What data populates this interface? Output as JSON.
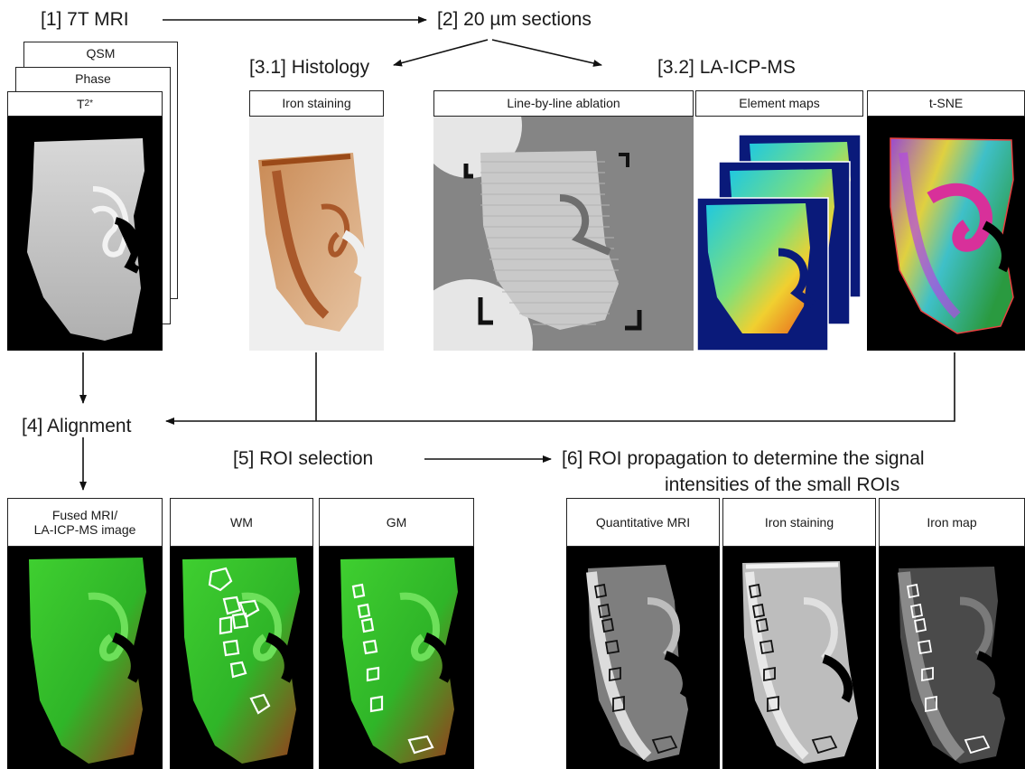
{
  "steps": {
    "s1": "[1] 7T MRI",
    "s2": "[2] 20 µm sections",
    "s31": "[3.1] Histology",
    "s32": "[3.2] LA-ICP-MS",
    "s4": "[4] Alignment",
    "s5": "[5] ROI selection",
    "s6_line1": "[6] ROI propagation to determine the signal",
    "s6_line2": "intensities of the small ROIs"
  },
  "mri_stack": {
    "qsm": "QSM",
    "phase": "Phase",
    "t2star": "T",
    "t2star_sub": "2",
    "t2star_sup": "*"
  },
  "panels": {
    "iron_staining": "Iron staining",
    "line_ablation": "Line-by-line ablation",
    "element_maps": "Element maps",
    "tsne": "t-SNE",
    "fused_line1": "Fused MRI/",
    "fused_line2": "LA-ICP-MS image",
    "wm": "WM",
    "gm": "GM",
    "quant_mri": "Quantitative MRI",
    "iron_staining_2": "Iron staining",
    "iron_map": "Iron map"
  },
  "colors": {
    "fused_green": "#2fbf2a",
    "fused_red": "#b8321e",
    "histology_brown": "#b3662e",
    "element_blue": "#0a1a7a",
    "tsne_cyan": "#36c9d6",
    "tsne_magenta": "#c8329a",
    "arrow": "#111111",
    "roi_outline": "#ffffff"
  }
}
